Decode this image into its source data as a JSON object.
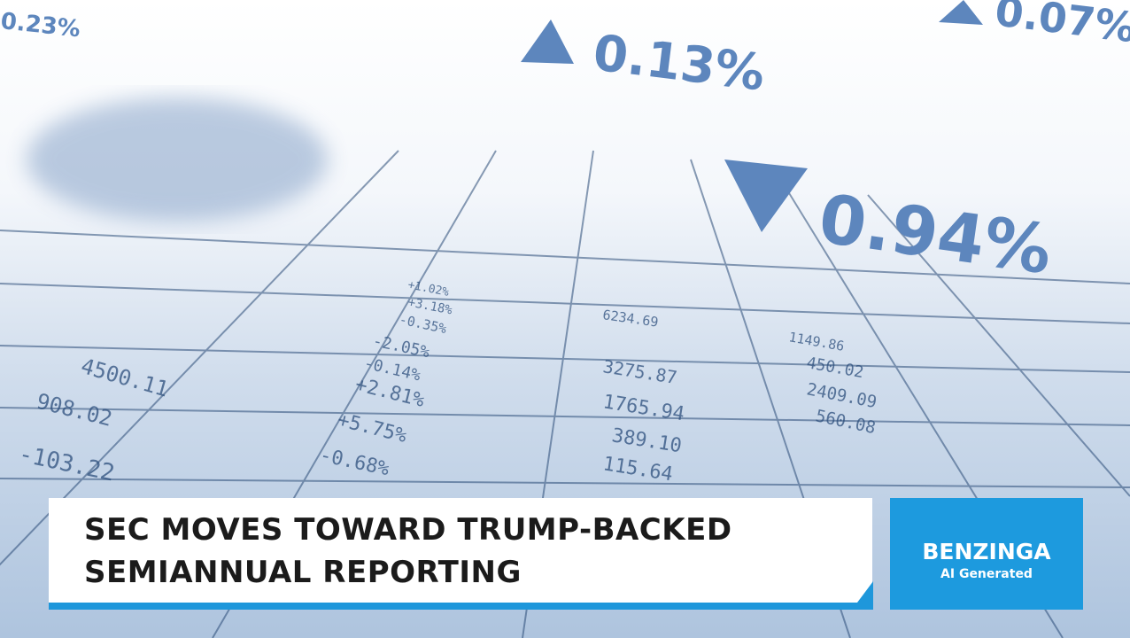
{
  "background": {
    "tickers": [
      "0.23%",
      "0.13%",
      "0.07%",
      "0.94%"
    ],
    "table_cells": [
      "+2.81%",
      "+5.75%",
      "-0.68%",
      "-2.05%",
      "-0.14%",
      "-0.35%",
      "+3.18%",
      "+1.02%",
      "3275.87",
      "1765.94",
      "389.10",
      "115.64",
      "450.02",
      "2409.09",
      "560.08",
      "-103.22",
      "908.02",
      "4500.11",
      "1149.86",
      "6234.69"
    ]
  },
  "banner": {
    "headline": [
      "SEC MOVES TOWARD TRUMP-BACKED",
      "SEMIANNUAL REPORTING"
    ]
  },
  "badge": {
    "brand": "BENZINGA",
    "label": "AI Generated"
  }
}
